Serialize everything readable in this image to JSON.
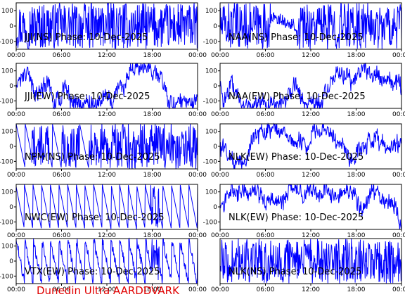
{
  "footer": "Dunedin Ultra AARDDVARK",
  "chart_data": [
    {
      "type": "line",
      "title": "JJI(NS) Phase: 10-Dec-2025",
      "ylim": [
        -150,
        150
      ],
      "xticks": [
        "00:00",
        "06:00",
        "12:00",
        "18:00",
        "00:00"
      ],
      "yticks": [
        100,
        0,
        -100
      ],
      "style": "dense",
      "color": "#0000ff"
    },
    {
      "type": "line",
      "title": "NAA(NS) Phase: 10-Dec-2025",
      "ylim": [
        -150,
        150
      ],
      "xticks": [
        "00:00",
        "06:00",
        "12:00",
        "18:00",
        "00:00"
      ],
      "yticks": [
        100,
        0,
        -100
      ],
      "style": "dense_gap",
      "color": "#0000ff"
    },
    {
      "type": "line",
      "title": "JJI(EW) Phase: 10-Dec-2025",
      "ylim": [
        -150,
        150
      ],
      "xticks": [
        "00:00",
        "06:00",
        "12:00",
        "18:00",
        "00:00"
      ],
      "yticks": [
        100,
        0,
        -100
      ],
      "style": "noisy",
      "color": "#0000ff"
    },
    {
      "type": "line",
      "title": "NAA(EW) Phase: 10-Dec-2025",
      "ylim": [
        -150,
        150
      ],
      "xticks": [
        "00:00",
        "06:00",
        "12:00",
        "18:00",
        "00:00"
      ],
      "yticks": [
        100,
        0,
        -100
      ],
      "style": "noisy",
      "color": "#0000ff"
    },
    {
      "type": "line",
      "title": "NPM(NS) Phase: 10-Dec-2025",
      "ylim": [
        -150,
        150
      ],
      "xticks": [
        "00:00",
        "06:00",
        "12:00",
        "18:00",
        "00:00"
      ],
      "yticks": [
        100,
        0,
        -100
      ],
      "style": "ramps_dense",
      "color": "#0000ff"
    },
    {
      "type": "line",
      "title": "NLK(EW) Phase: 10-Dec-2025",
      "ylim": [
        -150,
        150
      ],
      "xticks": [
        "00:00",
        "06:00",
        "12:00",
        "18:00",
        "00:00"
      ],
      "yticks": [
        100,
        0,
        -100
      ],
      "style": "noisy",
      "color": "#0000ff"
    },
    {
      "type": "line",
      "title": "NWC(EW) Phase: 10-Dec-2025",
      "ylim": [
        -150,
        150
      ],
      "xticks": [
        "00:00",
        "06:00",
        "12:00",
        "18:00",
        "00:00"
      ],
      "yticks": [
        100,
        0,
        -100
      ],
      "style": "sawtooth",
      "color": "#0000ff"
    },
    {
      "type": "line",
      "title": "NLK(EW) Phase: 10-Dec-2025",
      "ylim": [
        -150,
        150
      ],
      "xticks": [
        "00:00",
        "06:00",
        "12:00",
        "18:00",
        "00:00"
      ],
      "yticks": [
        100,
        0,
        -100
      ],
      "style": "noisy",
      "color": "#0000ff"
    },
    {
      "type": "line",
      "title": "VTX(EW) Phase: 10-Dec-2025",
      "ylim": [
        -150,
        150
      ],
      "xticks": [
        "00:00",
        "06:00",
        "12:00",
        "18:00",
        "00:00"
      ],
      "yticks": [
        100,
        0,
        -100
      ],
      "style": "sawtooth_noisy",
      "color": "#0000ff"
    },
    {
      "type": "line",
      "title": "NLK(NS) Phase: 10-Dec-2025",
      "ylim": [
        -150,
        150
      ],
      "xticks": [
        "00:00",
        "06:00",
        "12:00",
        "18:00",
        "00:00"
      ],
      "yticks": [],
      "style": "dense",
      "color": "#0000ff"
    }
  ]
}
